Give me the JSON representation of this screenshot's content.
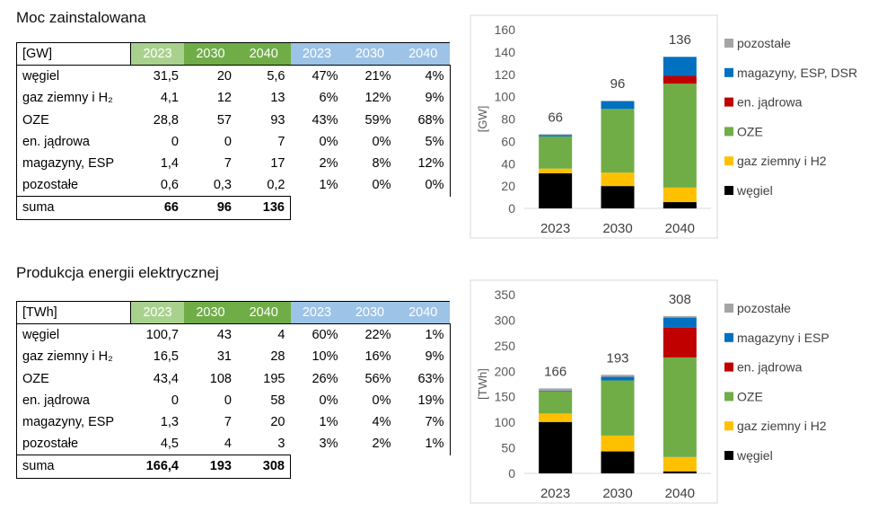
{
  "table1": {
    "title": "Moc zainstalowana",
    "unit": "[GW]",
    "years": [
      "2023",
      "2030",
      "2040"
    ],
    "pct_years": [
      "2023",
      "2030",
      "2040"
    ],
    "rows": [
      {
        "label": "węgiel",
        "values": [
          "31,5",
          "20",
          "5,6"
        ],
        "pcts": [
          "47%",
          "21%",
          "4%"
        ]
      },
      {
        "label": "gaz ziemny i H₂",
        "values": [
          "4,1",
          "12",
          "13"
        ],
        "pcts": [
          "6%",
          "12%",
          "9%"
        ]
      },
      {
        "label": "OZE",
        "values": [
          "28,8",
          "57",
          "93"
        ],
        "pcts": [
          "43%",
          "59%",
          "68%"
        ]
      },
      {
        "label": "en. jądrowa",
        "values": [
          "0",
          "0",
          "7"
        ],
        "pcts": [
          "0%",
          "0%",
          "5%"
        ]
      },
      {
        "label": "magazyny, ESP",
        "values": [
          "1,4",
          "7",
          "17"
        ],
        "pcts": [
          "2%",
          "8%",
          "12%"
        ]
      },
      {
        "label": "pozostałe",
        "values": [
          "0,6",
          "0,3",
          "0,2"
        ],
        "pcts": [
          "1%",
          "0%",
          "0%"
        ]
      }
    ],
    "sum": {
      "label": "suma",
      "values": [
        "66",
        "96",
        "136"
      ]
    }
  },
  "table2": {
    "title": "Produkcja energii elektrycznej",
    "unit": "[TWh]",
    "years": [
      "2023",
      "2030",
      "2040"
    ],
    "pct_years": [
      "2023",
      "2030",
      "2040"
    ],
    "rows": [
      {
        "label": "węgiel",
        "values": [
          "100,7",
          "43",
          "4"
        ],
        "pcts": [
          "60%",
          "22%",
          "1%"
        ]
      },
      {
        "label": "gaz ziemny i H₂",
        "values": [
          "16,5",
          "31",
          "28"
        ],
        "pcts": [
          "10%",
          "16%",
          "9%"
        ]
      },
      {
        "label": "OZE",
        "values": [
          "43,4",
          "108",
          "195"
        ],
        "pcts": [
          "26%",
          "56%",
          "63%"
        ]
      },
      {
        "label": "en. jądrowa",
        "values": [
          "0",
          "0",
          "58"
        ],
        "pcts": [
          "0%",
          "0%",
          "19%"
        ]
      },
      {
        "label": "magazyny, ESP",
        "values": [
          "1,3",
          "7",
          "20"
        ],
        "pcts": [
          "1%",
          "4%",
          "7%"
        ]
      },
      {
        "label": "pozostałe",
        "values": [
          "4,5",
          "4",
          "3"
        ],
        "pcts": [
          "3%",
          "2%",
          "1%"
        ]
      }
    ],
    "sum": {
      "label": "suma",
      "values": [
        "166,4",
        "193",
        "308"
      ]
    }
  },
  "chart_data": [
    {
      "type": "bar",
      "stacked": true,
      "categories": [
        "2023",
        "2030",
        "2040"
      ],
      "ylabel": "[GW]",
      "ylim": [
        0,
        160
      ],
      "yticks": [
        "0",
        "20",
        "40",
        "60",
        "80",
        "100",
        "120",
        "140",
        "160"
      ],
      "grid": false,
      "legend": "right",
      "totals": [
        "66",
        "96",
        "136"
      ],
      "series": [
        {
          "name": "węgiel",
          "color": "#000000",
          "values": [
            31.5,
            20,
            5.6
          ]
        },
        {
          "name": "gaz ziemny i H2",
          "color": "#ffc000",
          "values": [
            4.1,
            12,
            13
          ]
        },
        {
          "name": "OZE",
          "color": "#70ad47",
          "values": [
            28.8,
            57,
            93
          ]
        },
        {
          "name": "en. jądrowa",
          "color": "#c00000",
          "values": [
            0,
            0,
            7
          ]
        },
        {
          "name": "magazyny, ESP, DSR",
          "color": "#0070c0",
          "values": [
            1.4,
            7,
            17
          ]
        },
        {
          "name": "pozostałe",
          "color": "#a5a5a5",
          "values": [
            0.6,
            0.3,
            0.2
          ]
        }
      ]
    },
    {
      "type": "bar",
      "stacked": true,
      "categories": [
        "2023",
        "2030",
        "2040"
      ],
      "ylabel": "[TWh]",
      "ylim": [
        0,
        350
      ],
      "yticks": [
        "0",
        "50",
        "100",
        "150",
        "200",
        "250",
        "300",
        "350"
      ],
      "grid": false,
      "legend": "right",
      "totals": [
        "166",
        "193",
        "308"
      ],
      "series": [
        {
          "name": "węgiel",
          "color": "#000000",
          "values": [
            100.7,
            43,
            4
          ]
        },
        {
          "name": "gaz ziemny i H2",
          "color": "#ffc000",
          "values": [
            16.5,
            31,
            28
          ]
        },
        {
          "name": "OZE",
          "color": "#70ad47",
          "values": [
            43.4,
            108,
            195
          ]
        },
        {
          "name": "en. jądrowa",
          "color": "#c00000",
          "values": [
            0,
            0,
            58
          ]
        },
        {
          "name": "magazyny i ESP",
          "color": "#0070c0",
          "values": [
            1.3,
            7,
            20
          ]
        },
        {
          "name": "pozostałe",
          "color": "#a5a5a5",
          "values": [
            4.5,
            4,
            3
          ]
        }
      ]
    }
  ]
}
